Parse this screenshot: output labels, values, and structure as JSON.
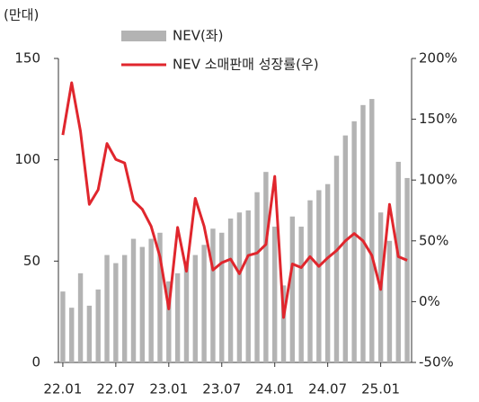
{
  "chart_data": {
    "type": "bar_line",
    "unit_label": "(만대)",
    "categories": [
      "22.01",
      null,
      null,
      null,
      null,
      null,
      "22.07",
      null,
      null,
      null,
      null,
      null,
      "23.01",
      null,
      null,
      null,
      null,
      null,
      "23.07",
      null,
      null,
      null,
      null,
      null,
      "24.01",
      null,
      null,
      null,
      null,
      null,
      "24.07",
      null,
      null,
      null,
      null,
      null,
      "25.01",
      null,
      null,
      null
    ],
    "series": [
      {
        "name": "NEV(좌)",
        "type": "bar",
        "color": "#b3b3b3",
        "values": [
          35,
          27,
          44,
          28,
          36,
          53,
          49,
          53,
          61,
          57,
          61,
          64,
          40,
          44,
          50,
          53,
          58,
          66,
          64,
          71,
          74,
          75,
          84,
          94,
          67,
          38,
          72,
          67,
          80,
          85,
          88,
          102,
          112,
          119,
          127,
          130,
          74,
          60,
          99,
          91
        ]
      },
      {
        "name": "NEV 소매판매 성장률(우)",
        "type": "line",
        "axis": "y2",
        "color": "#e0262d",
        "values": [
          137,
          180,
          140,
          80,
          92,
          130,
          117,
          114,
          83,
          76,
          62,
          37,
          -6,
          61,
          25,
          85,
          62,
          26,
          32,
          35,
          23,
          38,
          40,
          47,
          103,
          -13,
          31,
          28,
          37,
          29,
          36,
          42,
          50,
          56,
          50,
          38,
          10,
          80,
          37,
          34
        ]
      }
    ],
    "ylim": [
      0,
      150
    ],
    "yticks": [
      0,
      50,
      100,
      150
    ],
    "y2lim": [
      -50,
      200
    ],
    "y2ticks": [
      {
        "value": -50,
        "label": "-50%"
      },
      {
        "value": 0,
        "label": "0%"
      },
      {
        "value": 50,
        "label": "50%"
      },
      {
        "value": 100,
        "label": "100%"
      },
      {
        "value": 150,
        "label": "150%"
      },
      {
        "value": 200,
        "label": "200%"
      }
    ]
  }
}
